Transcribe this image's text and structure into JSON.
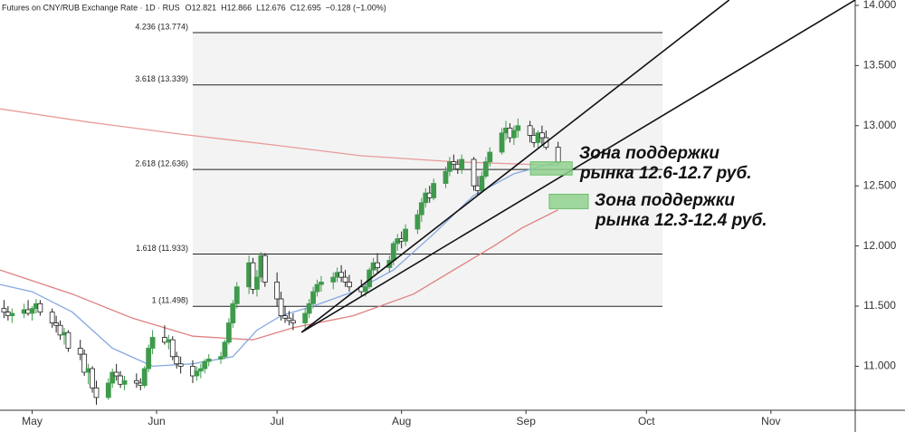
{
  "chart_data": {
    "type": "candlestick",
    "title": "Futures on CNY/RUB Exchange Rate · 1D · RUS",
    "quote_labels": [
      "O12.821",
      "H12.866",
      "L12.676",
      "C12.695",
      "−0.128 (−1.00%)"
    ],
    "xlim": [
      -8,
      205
    ],
    "xticks": [
      {
        "value": 0,
        "label": "May"
      },
      {
        "value": 31,
        "label": "Jun"
      },
      {
        "value": 61,
        "label": "Jul"
      },
      {
        "value": 92,
        "label": "Aug"
      },
      {
        "value": 123,
        "label": "Sep"
      },
      {
        "value": 153,
        "label": "Oct"
      },
      {
        "value": 184,
        "label": "Nov"
      }
    ],
    "ylim": [
      10.634,
      14.045
    ],
    "yticks": [
      {
        "value": 11,
        "label": "11.000"
      },
      {
        "value": 11.5,
        "label": "11.500"
      },
      {
        "value": 12,
        "label": "12.000"
      },
      {
        "value": 12.5,
        "label": "12.500"
      },
      {
        "value": 13,
        "label": "13.000"
      },
      {
        "value": 13.5,
        "label": "13.500"
      },
      {
        "value": 14,
        "label": "14.000"
      }
    ],
    "up_color": "#3f9a4c",
    "down_color": "#ffffff",
    "x": [
      -7,
      -6,
      -5,
      -2,
      -1,
      0,
      1,
      2,
      5,
      6,
      7,
      8,
      9,
      12,
      13,
      14,
      15,
      16,
      19,
      20,
      21,
      22,
      23,
      26,
      27,
      28,
      29,
      30,
      33,
      34,
      35,
      36,
      37,
      40,
      41,
      42,
      43,
      44,
      47,
      48,
      49,
      50,
      51,
      54,
      55,
      56,
      57,
      58,
      61,
      62,
      63,
      64,
      65,
      68,
      69,
      70,
      71,
      72,
      75,
      76,
      77,
      78,
      79,
      82,
      83,
      84,
      85,
      86,
      89,
      90,
      91,
      92,
      93,
      96,
      97,
      98,
      99,
      100,
      103,
      104,
      105,
      106,
      107,
      110,
      111,
      112,
      113,
      114,
      117,
      118,
      119,
      120,
      121,
      124,
      125,
      126,
      127,
      128,
      131
    ],
    "candles": [
      [
        11.48,
        11.55,
        11.4,
        11.45
      ],
      [
        11.45,
        11.5,
        11.38,
        11.42
      ],
      [
        11.42,
        11.48,
        11.36,
        11.44
      ],
      [
        11.44,
        11.52,
        11.4,
        11.47
      ],
      [
        11.47,
        11.55,
        11.42,
        11.44
      ],
      [
        11.44,
        11.5,
        11.38,
        11.48
      ],
      [
        11.48,
        11.56,
        11.44,
        11.52
      ],
      [
        11.52,
        11.55,
        11.42,
        11.45
      ],
      [
        11.45,
        11.48,
        11.32,
        11.36
      ],
      [
        11.36,
        11.42,
        11.28,
        11.34
      ],
      [
        11.34,
        11.38,
        11.22,
        11.26
      ],
      [
        11.26,
        11.32,
        11.18,
        11.28
      ],
      [
        11.28,
        11.3,
        11.12,
        11.15
      ],
      [
        11.15,
        11.22,
        11.05,
        11.1
      ],
      [
        11.1,
        11.14,
        10.92,
        10.95
      ],
      [
        10.95,
        11.02,
        10.85,
        10.98
      ],
      [
        10.98,
        11.0,
        10.78,
        10.82
      ],
      [
        10.82,
        10.88,
        10.68,
        10.74
      ],
      [
        10.74,
        10.9,
        10.72,
        10.86
      ],
      [
        10.86,
        10.98,
        10.82,
        10.95
      ],
      [
        10.95,
        11.02,
        10.88,
        10.92
      ],
      [
        10.92,
        10.96,
        10.82,
        10.85
      ],
      [
        10.85,
        10.92,
        10.8,
        10.88
      ],
      [
        10.88,
        10.94,
        10.82,
        10.86
      ],
      [
        10.86,
        10.9,
        10.8,
        10.84
      ],
      [
        10.84,
        11.0,
        10.82,
        10.98
      ],
      [
        10.98,
        11.18,
        10.95,
        11.15
      ],
      [
        11.15,
        11.3,
        11.1,
        11.24
      ],
      [
        11.24,
        11.34,
        11.18,
        11.2
      ],
      [
        11.2,
        11.26,
        11.14,
        11.22
      ],
      [
        11.22,
        11.25,
        11.05,
        11.08
      ],
      [
        11.08,
        11.12,
        10.98,
        11.02
      ],
      [
        11.02,
        11.08,
        10.94,
        11.0
      ],
      [
        11.0,
        11.05,
        10.86,
        10.92
      ],
      [
        10.92,
        11.0,
        10.88,
        10.96
      ],
      [
        10.96,
        11.02,
        10.9,
        10.98
      ],
      [
        10.98,
        11.06,
        10.94,
        11.04
      ],
      [
        11.04,
        11.1,
        11.0,
        11.06
      ],
      [
        11.06,
        11.12,
        11.02,
        11.08
      ],
      [
        11.08,
        11.22,
        11.06,
        11.2
      ],
      [
        11.2,
        11.4,
        11.18,
        11.36
      ],
      [
        11.36,
        11.55,
        11.32,
        11.52
      ],
      [
        11.52,
        11.7,
        11.48,
        11.66
      ],
      [
        11.66,
        11.92,
        11.6,
        11.86
      ],
      [
        11.86,
        11.9,
        11.6,
        11.64
      ],
      [
        11.64,
        11.8,
        11.58,
        11.74
      ],
      [
        11.74,
        11.95,
        11.7,
        11.92
      ],
      [
        11.92,
        11.94,
        11.66,
        11.7
      ],
      [
        11.7,
        11.78,
        11.5,
        11.56
      ],
      [
        11.56,
        11.62,
        11.38,
        11.42
      ],
      [
        11.42,
        11.5,
        11.36,
        11.4
      ],
      [
        11.4,
        11.46,
        11.34,
        11.38
      ],
      [
        11.38,
        11.44,
        11.3,
        11.36
      ],
      [
        11.36,
        11.48,
        11.3,
        11.44
      ],
      [
        11.44,
        11.56,
        11.4,
        11.52
      ],
      [
        11.52,
        11.66,
        11.48,
        11.62
      ],
      [
        11.62,
        11.72,
        11.58,
        11.68
      ],
      [
        11.68,
        11.75,
        11.62,
        11.7
      ],
      [
        11.7,
        11.78,
        11.64,
        11.74
      ],
      [
        11.74,
        11.82,
        11.7,
        11.78
      ],
      [
        11.78,
        11.84,
        11.7,
        11.74
      ],
      [
        11.74,
        11.8,
        11.66,
        11.7
      ],
      [
        11.7,
        11.76,
        11.62,
        11.66
      ],
      [
        11.66,
        11.72,
        11.58,
        11.62
      ],
      [
        11.62,
        11.7,
        11.58,
        11.66
      ],
      [
        11.66,
        11.82,
        11.64,
        11.8
      ],
      [
        11.8,
        11.9,
        11.76,
        11.86
      ],
      [
        11.86,
        11.94,
        11.78,
        11.82
      ],
      [
        11.82,
        11.92,
        11.78,
        11.88
      ],
      [
        11.88,
        12.04,
        11.84,
        12.02
      ],
      [
        12.02,
        12.1,
        11.96,
        12.06
      ],
      [
        12.06,
        12.12,
        11.98,
        12.04
      ],
      [
        12.04,
        12.18,
        12.0,
        12.14
      ],
      [
        12.14,
        12.3,
        12.1,
        12.26
      ],
      [
        12.26,
        12.4,
        12.2,
        12.36
      ],
      [
        12.36,
        12.48,
        12.32,
        12.44
      ],
      [
        12.44,
        12.5,
        12.36,
        12.4
      ],
      [
        12.4,
        12.56,
        12.38,
        12.52
      ],
      [
        12.52,
        12.66,
        12.48,
        12.62
      ],
      [
        12.62,
        12.74,
        12.58,
        12.7
      ],
      [
        12.7,
        12.76,
        12.64,
        12.68
      ],
      [
        12.68,
        12.72,
        12.6,
        12.64
      ],
      [
        12.64,
        12.76,
        12.6,
        12.72
      ],
      [
        12.72,
        12.74,
        12.46,
        12.5
      ],
      [
        12.5,
        12.58,
        12.42,
        12.46
      ],
      [
        12.46,
        12.62,
        12.44,
        12.58
      ],
      [
        12.58,
        12.74,
        12.56,
        12.7
      ],
      [
        12.7,
        12.82,
        12.66,
        12.78
      ],
      [
        12.78,
        12.98,
        12.76,
        12.94
      ],
      [
        12.94,
        13.04,
        12.88,
        12.98
      ],
      [
        12.98,
        13.02,
        12.86,
        12.9
      ],
      [
        12.9,
        13.0,
        12.84,
        12.96
      ],
      [
        12.96,
        13.06,
        12.9,
        13.0
      ],
      [
        13.0,
        13.04,
        12.86,
        12.92
      ],
      [
        12.92,
        12.98,
        12.82,
        12.86
      ],
      [
        12.86,
        12.96,
        12.82,
        12.94
      ],
      [
        12.94,
        13.0,
        12.84,
        12.9
      ],
      [
        12.9,
        12.96,
        12.8,
        12.82
      ],
      [
        12.821,
        12.866,
        12.676,
        12.695
      ]
    ],
    "lines": [
      {
        "color": "#e89a9a",
        "x": [
          -8,
          14,
          37,
          60,
          82,
          105,
          131
        ],
        "values": [
          13.14,
          13.03,
          12.93,
          12.84,
          12.75,
          12.7,
          12.67
        ]
      },
      {
        "color": "#e07f7f",
        "x": [
          -8,
          10,
          25,
          40,
          55,
          65,
          80,
          95,
          105,
          115,
          122,
          131
        ],
        "values": [
          11.8,
          11.6,
          11.4,
          11.25,
          11.22,
          11.32,
          11.42,
          11.6,
          11.8,
          12.0,
          12.15,
          12.3
        ]
      },
      {
        "color": "#86a8e0",
        "x": [
          -8,
          0,
          10,
          20,
          30,
          40,
          50,
          56,
          62,
          70,
          80,
          90,
          100,
          110,
          120,
          131
        ],
        "values": [
          11.68,
          11.62,
          11.45,
          11.15,
          11.0,
          11.02,
          11.08,
          11.3,
          11.42,
          11.5,
          11.62,
          11.8,
          12.1,
          12.42,
          12.6,
          12.7
        ]
      }
    ],
    "fib_x": [
      40,
      157
    ],
    "fib_levels": [
      {
        "value": 13.774,
        "label": "4.236 (13.774)"
      },
      {
        "value": 13.339,
        "label": "3.618 (13.339)"
      },
      {
        "value": 12.636,
        "label": "2.618 (12.636)"
      },
      {
        "value": 11.933,
        "label": "1.618 (11.933)"
      },
      {
        "value": 11.498,
        "label": "1 (11.498)"
      }
    ],
    "trendlines": [
      {
        "x": [
          67.1,
          173.6
        ],
        "values": [
          11.282,
          14.045
        ]
      },
      {
        "x": [
          67.1,
          205
        ],
        "values": [
          11.282,
          14.045
        ]
      }
    ],
    "zones": [
      {
        "x": [
          124.1,
          134.5
        ],
        "values": [
          12.59,
          12.7
        ],
        "text": [
          "Зона поддержки",
          "рынка 12.6-12.7 руб."
        ]
      },
      {
        "x": [
          128.8,
          138.5
        ],
        "values": [
          12.31,
          12.43
        ],
        "text": [
          "Зона поддержки",
          "рынка 12.3-12.4 руб."
        ]
      }
    ]
  }
}
